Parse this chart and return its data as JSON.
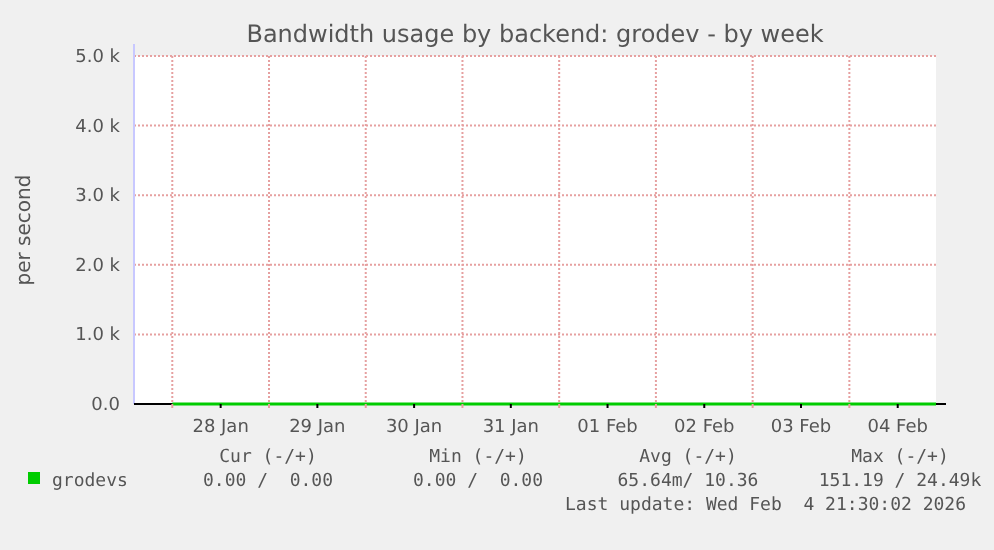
{
  "chart_data": {
    "type": "line",
    "title": "Bandwidth usage by backend: grodev - by week",
    "ylabel": "per second",
    "x": [
      "2026-01-28T00:00",
      "2026-01-29T00:00",
      "2026-01-30T00:00",
      "2026-01-31T00:00",
      "2026-02-01T00:00",
      "2026-02-02T00:00",
      "2026-02-03T00:00",
      "2026-02-04T00:00",
      "2026-02-04T21:30"
    ],
    "series": [
      {
        "name": "grodevs",
        "color": "#00cc00",
        "values": [
          0,
          0,
          0,
          0,
          0,
          0,
          0,
          0,
          0
        ]
      }
    ],
    "xlim": [
      "2026-01-27T14:30",
      "2026-02-04T21:30"
    ],
    "xticks": [
      {
        "value": "2026-01-28T00:00",
        "label": null
      },
      {
        "value": "2026-01-28T12:00",
        "label": "28 Jan"
      },
      {
        "value": "2026-01-29T00:00",
        "label": null
      },
      {
        "value": "2026-01-29T12:00",
        "label": "29 Jan"
      },
      {
        "value": "2026-01-30T00:00",
        "label": null
      },
      {
        "value": "2026-01-30T12:00",
        "label": "30 Jan"
      },
      {
        "value": "2026-01-31T00:00",
        "label": null
      },
      {
        "value": "2026-01-31T12:00",
        "label": "31 Jan"
      },
      {
        "value": "2026-02-01T00:00",
        "label": null
      },
      {
        "value": "2026-02-01T12:00",
        "label": "01 Feb"
      },
      {
        "value": "2026-02-02T00:00",
        "label": null
      },
      {
        "value": "2026-02-02T12:00",
        "label": "02 Feb"
      },
      {
        "value": "2026-02-03T00:00",
        "label": null
      },
      {
        "value": "2026-02-03T12:00",
        "label": "03 Feb"
      },
      {
        "value": "2026-02-04T00:00",
        "label": null
      },
      {
        "value": "2026-02-04T12:00",
        "label": "04 Feb"
      }
    ],
    "ylim": [
      0,
      5000
    ],
    "yticks": [
      {
        "value": 0,
        "label": "0.0"
      },
      {
        "value": 1000,
        "label": "1.0 k"
      },
      {
        "value": 2000,
        "label": "2.0 k"
      },
      {
        "value": 3000,
        "label": "3.0 k"
      },
      {
        "value": 4000,
        "label": "4.0 k"
      },
      {
        "value": 5000,
        "label": "5.0 k"
      }
    ],
    "grid": true,
    "legend": "bottom",
    "annotations": [
      "Cur (-/+)",
      "Min (-/+)",
      "Avg (-/+)",
      "Max (-/+)",
      "0.00 /  0.00",
      "0.00 /  0.00",
      "65.64m/ 10.36",
      "151.19 / 24.49k",
      "Last update: Wed Feb  4 21:30:02 2026"
    ]
  }
}
